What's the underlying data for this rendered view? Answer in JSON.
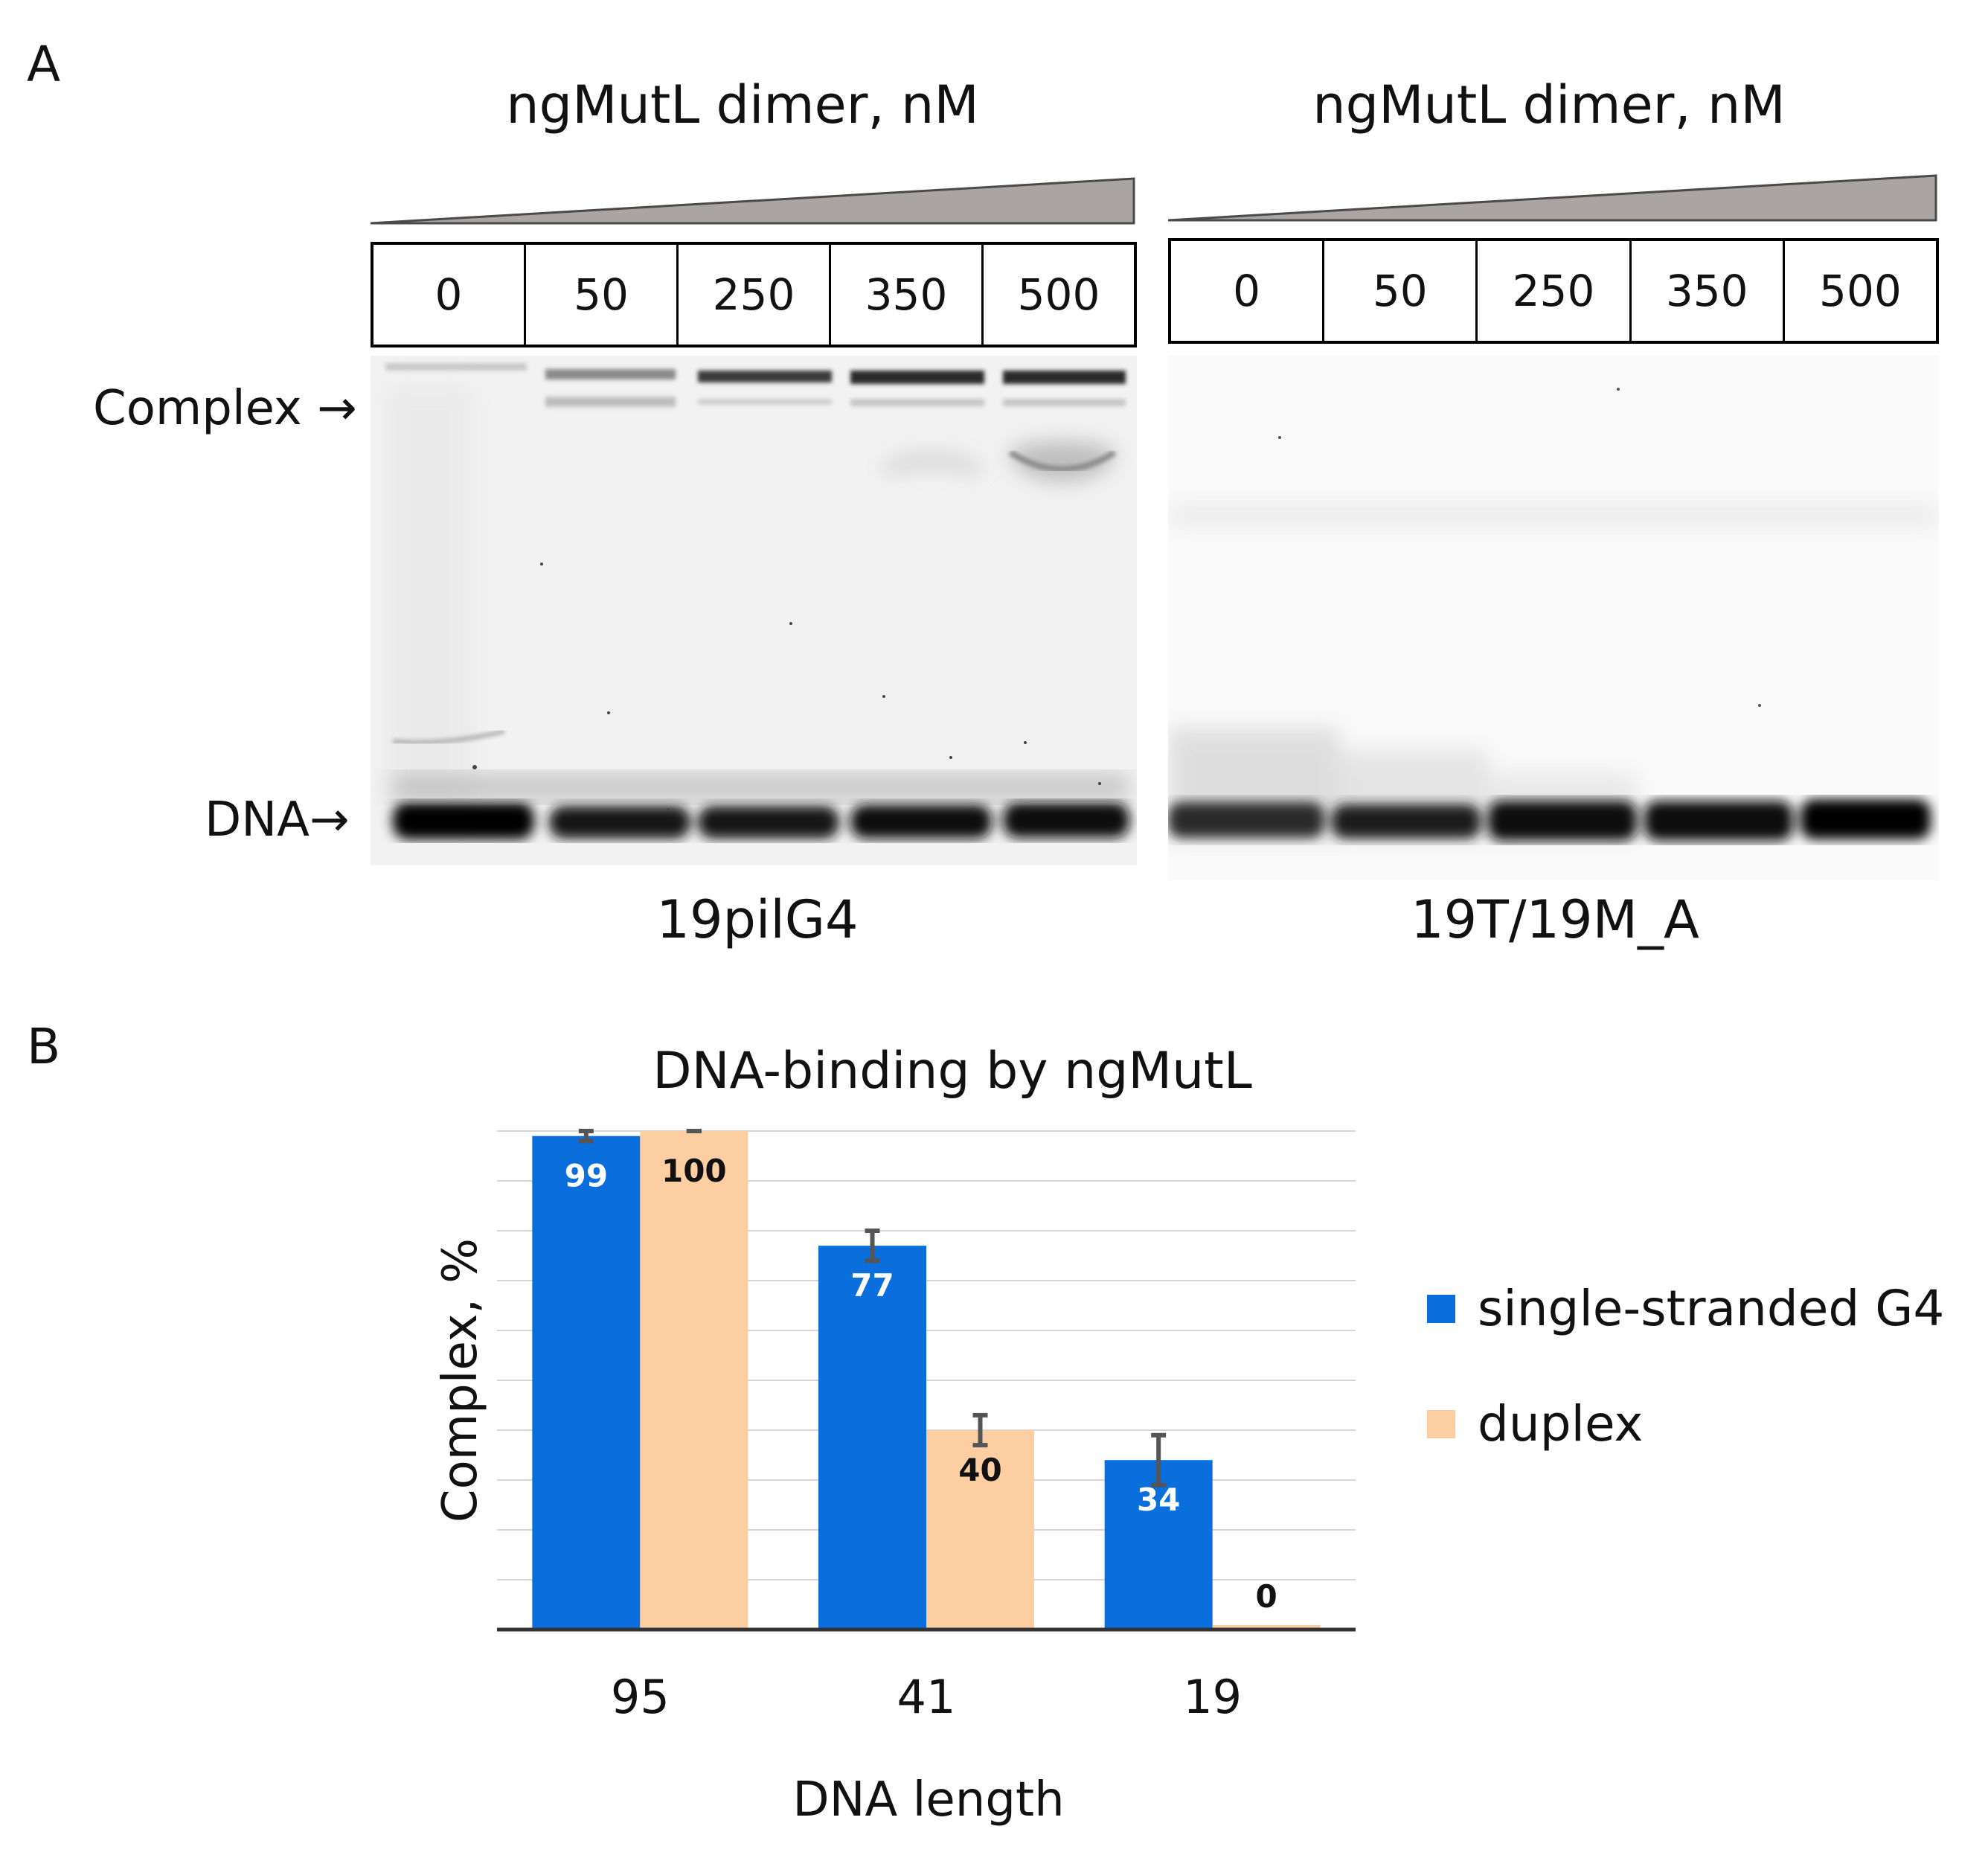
{
  "panel_a": {
    "letter": "A",
    "gels": [
      {
        "title": "ngMutL dimer, nM",
        "lanes": [
          "0",
          "50",
          "250",
          "350",
          "500"
        ],
        "sample": "19pilG4"
      },
      {
        "title": "ngMutL dimer, nM",
        "lanes": [
          "0",
          "50",
          "250",
          "350",
          "500"
        ],
        "sample": "19T/19M_A"
      }
    ],
    "labels": {
      "complex": "Complex →",
      "dna": "DNA→"
    }
  },
  "panel_b": {
    "letter": "B"
  },
  "chart_data": {
    "type": "bar",
    "title": "DNA-binding by ngMutL",
    "xlabel": "DNA length",
    "ylabel": "Complex, %",
    "categories": [
      "95",
      "41",
      "19"
    ],
    "ylim": [
      0,
      100
    ],
    "grid": true,
    "legend_position": "right",
    "series": [
      {
        "name": "single-stranded G4",
        "values": [
          99,
          77,
          34
        ],
        "errors": [
          1,
          3,
          5
        ],
        "color": "#0a6fdc",
        "label_color": "#ffffff"
      },
      {
        "name": "duplex",
        "values": [
          100,
          40,
          0
        ],
        "errors": [
          0,
          3,
          0
        ],
        "color": "#fccea2",
        "label_color": "#111111"
      }
    ]
  }
}
